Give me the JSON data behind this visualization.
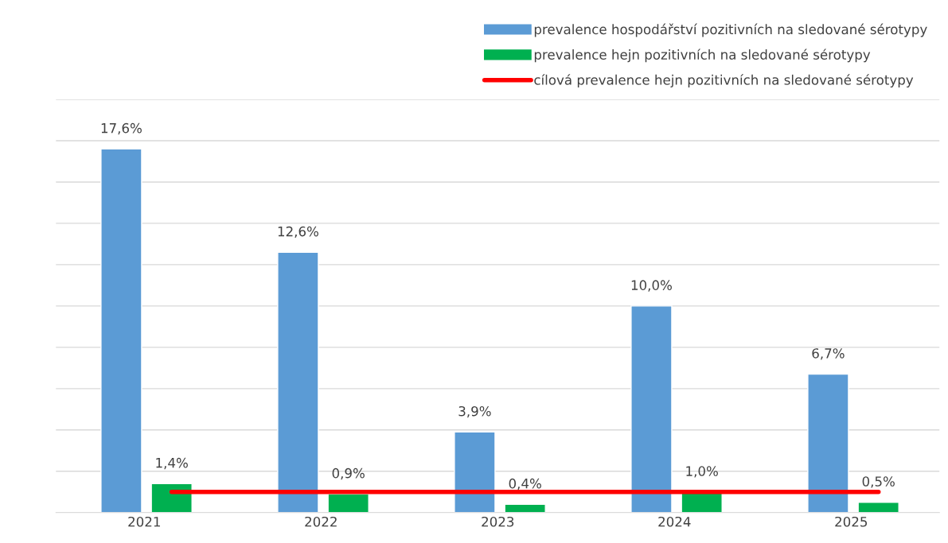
{
  "chart_data": {
    "type": "bar",
    "categories": [
      "2021",
      "2022",
      "2023",
      "2024",
      "2025"
    ],
    "series": [
      {
        "name": "prevalence hospodářství pozitivních na sledované sérotypy",
        "color": "#5b9bd5",
        "values": [
          17.6,
          12.6,
          3.9,
          10.0,
          6.7
        ],
        "value_labels": [
          "17,6%",
          "12,6%",
          "3,9%",
          "10,0%",
          "6,7%"
        ]
      },
      {
        "name": "prevalence hejn pozitivních na sledované sérotypy",
        "color": "#00b050",
        "values": [
          1.4,
          0.9,
          0.4,
          1.0,
          0.5
        ],
        "value_labels": [
          "1,4%",
          "0,9%",
          "0,4%",
          "1,0%",
          "0,5%"
        ]
      },
      {
        "name": "cílová prevalence hejn pozitivních na sledované sérotypy",
        "color": "#ff0000",
        "type": "line",
        "values": [
          1.0,
          1.0,
          1.0,
          1.0,
          1.0
        ]
      }
    ],
    "ylim": [
      0,
      20
    ],
    "yticks": [
      {
        "value": 0,
        "label": null
      },
      {
        "value": 2,
        "label": null
      },
      {
        "value": 4,
        "label": null
      },
      {
        "value": 6,
        "label": null
      },
      {
        "value": 8,
        "label": null
      },
      {
        "value": 10,
        "label": null
      },
      {
        "value": 12,
        "label": null
      },
      {
        "value": 14,
        "label": null
      },
      {
        "value": 16,
        "label": null
      },
      {
        "value": 18,
        "label": null
      },
      {
        "value": 20,
        "label": null
      }
    ],
    "grid": "y",
    "legend": "top right",
    "tick_labels": "x"
  }
}
